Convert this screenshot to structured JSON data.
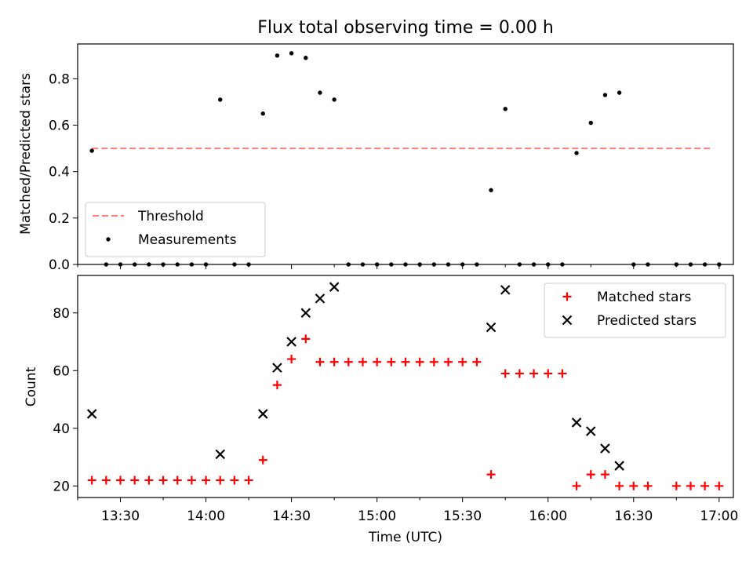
{
  "figure_title": "Flux total observing time = 0.00 h",
  "chart_data": [
    {
      "type": "scatter",
      "title": "Flux total observing time = 0.00 h",
      "xlabel": "",
      "ylabel": "Matched/Predicted stars",
      "xlim": [
        "13:15",
        "17:05"
      ],
      "ylim": [
        0,
        0.95
      ],
      "yticks": [
        "0.0",
        "0.2",
        "0.4",
        "0.6",
        "0.8"
      ],
      "legend_position": "lower-left",
      "threshold": {
        "name": "Threshold",
        "value": 0.5,
        "x_start": "13:20",
        "x_end": "16:58",
        "color": "#ff7f7f",
        "style": "dashed"
      },
      "series": [
        {
          "name": "Measurements",
          "color": "#000000",
          "marker": "dot",
          "points": [
            [
              "13:20",
              0.49
            ],
            [
              "13:25",
              0.0
            ],
            [
              "13:30",
              0.0
            ],
            [
              "13:35",
              0.0
            ],
            [
              "13:40",
              0.0
            ],
            [
              "13:45",
              0.0
            ],
            [
              "13:50",
              0.0
            ],
            [
              "13:55",
              0.0
            ],
            [
              "14:00",
              0.0
            ],
            [
              "14:05",
              0.71
            ],
            [
              "14:10",
              0.0
            ],
            [
              "14:15",
              0.0
            ],
            [
              "14:20",
              0.65
            ],
            [
              "14:25",
              0.9
            ],
            [
              "14:30",
              0.91
            ],
            [
              "14:35",
              0.89
            ],
            [
              "14:40",
              0.74
            ],
            [
              "14:45",
              0.71
            ],
            [
              "14:50",
              0.0
            ],
            [
              "14:55",
              0.0
            ],
            [
              "15:00",
              0.0
            ],
            [
              "15:05",
              0.0
            ],
            [
              "15:10",
              0.0
            ],
            [
              "15:15",
              0.0
            ],
            [
              "15:20",
              0.0
            ],
            [
              "15:25",
              0.0
            ],
            [
              "15:30",
              0.0
            ],
            [
              "15:35",
              0.0
            ],
            [
              "15:40",
              0.32
            ],
            [
              "15:45",
              0.67
            ],
            [
              "15:50",
              0.0
            ],
            [
              "15:55",
              0.0
            ],
            [
              "16:00",
              0.0
            ],
            [
              "16:05",
              0.0
            ],
            [
              "16:10",
              0.48
            ],
            [
              "16:15",
              0.61
            ],
            [
              "16:20",
              0.73
            ],
            [
              "16:25",
              0.74
            ],
            [
              "16:30",
              0.0
            ],
            [
              "16:35",
              0.0
            ],
            [
              "16:45",
              0.0
            ],
            [
              "16:50",
              0.0
            ],
            [
              "16:55",
              0.0
            ],
            [
              "17:00",
              0.0
            ]
          ]
        }
      ]
    },
    {
      "type": "scatter",
      "title": "",
      "xlabel": "Time (UTC)",
      "ylabel": "Count",
      "xlim": [
        "13:15",
        "17:05"
      ],
      "ylim": [
        16,
        93
      ],
      "xticks": [
        "13:30",
        "14:00",
        "14:30",
        "15:00",
        "15:30",
        "16:00",
        "16:30",
        "17:00"
      ],
      "yticks": [
        "20",
        "40",
        "60",
        "80"
      ],
      "legend_position": "top-right",
      "series": [
        {
          "name": "Matched stars",
          "color": "#ff0000",
          "marker": "plus",
          "points": [
            [
              "13:20",
              22
            ],
            [
              "13:25",
              22
            ],
            [
              "13:30",
              22
            ],
            [
              "13:35",
              22
            ],
            [
              "13:40",
              22
            ],
            [
              "13:45",
              22
            ],
            [
              "13:50",
              22
            ],
            [
              "13:55",
              22
            ],
            [
              "14:00",
              22
            ],
            [
              "14:05",
              22
            ],
            [
              "14:10",
              22
            ],
            [
              "14:15",
              22
            ],
            [
              "14:20",
              29
            ],
            [
              "14:25",
              55
            ],
            [
              "14:30",
              64
            ],
            [
              "14:35",
              71
            ],
            [
              "14:40",
              63
            ],
            [
              "14:45",
              63
            ],
            [
              "14:50",
              63
            ],
            [
              "14:55",
              63
            ],
            [
              "15:00",
              63
            ],
            [
              "15:05",
              63
            ],
            [
              "15:10",
              63
            ],
            [
              "15:15",
              63
            ],
            [
              "15:20",
              63
            ],
            [
              "15:25",
              63
            ],
            [
              "15:30",
              63
            ],
            [
              "15:35",
              63
            ],
            [
              "15:40",
              24
            ],
            [
              "15:45",
              59
            ],
            [
              "15:50",
              59
            ],
            [
              "15:55",
              59
            ],
            [
              "16:00",
              59
            ],
            [
              "16:05",
              59
            ],
            [
              "16:10",
              20
            ],
            [
              "16:15",
              24
            ],
            [
              "16:20",
              24
            ],
            [
              "16:25",
              20
            ],
            [
              "16:30",
              20
            ],
            [
              "16:35",
              20
            ],
            [
              "16:45",
              20
            ],
            [
              "16:50",
              20
            ],
            [
              "16:55",
              20
            ],
            [
              "17:00",
              20
            ]
          ]
        },
        {
          "name": "Predicted stars",
          "color": "#000000",
          "marker": "cross",
          "points": [
            [
              "13:20",
              45
            ],
            [
              "14:05",
              31
            ],
            [
              "14:20",
              45
            ],
            [
              "14:25",
              61
            ],
            [
              "14:30",
              70
            ],
            [
              "14:35",
              80
            ],
            [
              "14:40",
              85
            ],
            [
              "14:45",
              89
            ],
            [
              "15:40",
              75
            ],
            [
              "15:45",
              88
            ],
            [
              "16:10",
              42
            ],
            [
              "16:15",
              39
            ],
            [
              "16:20",
              33
            ],
            [
              "16:25",
              27
            ]
          ]
        }
      ]
    }
  ]
}
